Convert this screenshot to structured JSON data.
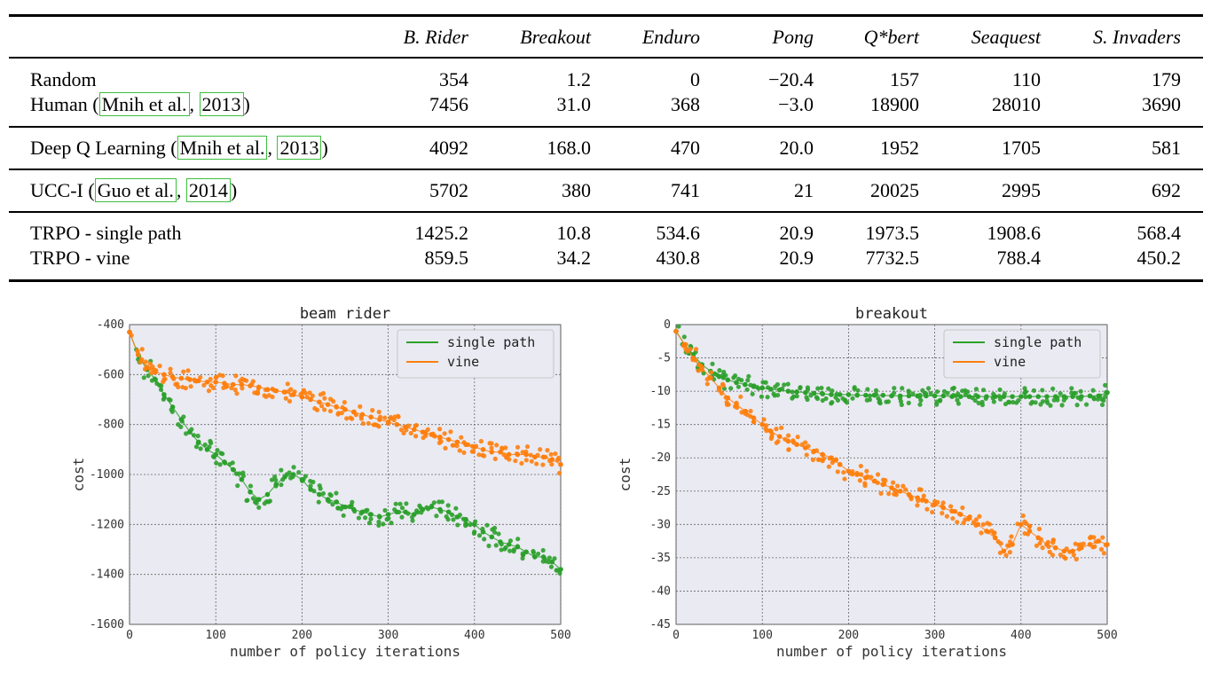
{
  "table": {
    "headers": [
      "",
      "B. Rider",
      "Breakout",
      "Enduro",
      "Pong",
      "Q*bert",
      "Seaquest",
      "S. Invaders"
    ],
    "groups": [
      [
        {
          "label": "Random",
          "values": [
            "354",
            "1.2",
            "0",
            "−20.4",
            "157",
            "110",
            "179"
          ]
        },
        {
          "label": "Human",
          "cite_author": "Mnih et al.",
          "cite_year": "2013",
          "values": [
            "7456",
            "31.0",
            "368",
            "−3.0",
            "18900",
            "28010",
            "3690"
          ]
        }
      ],
      [
        {
          "label": "Deep Q Learning",
          "cite_author": "Mnih et al.",
          "cite_year": "2013",
          "values": [
            "4092",
            "168.0",
            "470",
            "20.0",
            "1952",
            "1705",
            "581"
          ]
        }
      ],
      [
        {
          "label": "UCC-I",
          "cite_author": "Guo et al.",
          "cite_year": "2014",
          "values": [
            "5702",
            "380",
            "741",
            "21",
            "20025",
            "2995",
            "692"
          ]
        }
      ],
      [
        {
          "label": "TRPO - single path",
          "values": [
            "1425.2",
            "10.8",
            "534.6",
            "20.9",
            "1973.5",
            "1908.6",
            "568.4"
          ]
        },
        {
          "label": "TRPO - vine",
          "values": [
            "859.5",
            "34.2",
            "430.8",
            "20.9",
            "7732.5",
            "788.4",
            "450.2"
          ]
        }
      ]
    ]
  },
  "chart_data": [
    {
      "type": "scatter",
      "title": "beam rider",
      "xlabel": "number of policy iterations",
      "ylabel": "cost",
      "xlim": [
        0,
        500
      ],
      "ylim": [
        -1600,
        -400
      ],
      "xticks": [
        0,
        100,
        200,
        300,
        400,
        500
      ],
      "yticks": [
        -400,
        -600,
        -800,
        -1000,
        -1200,
        -1400,
        -1600
      ],
      "grid": true,
      "legend_position": "top-right",
      "series": [
        {
          "name": "single path",
          "color": "#2ca02c",
          "x": [
            0,
            10,
            20,
            30,
            40,
            50,
            60,
            70,
            80,
            90,
            100,
            110,
            120,
            130,
            140,
            150,
            160,
            170,
            180,
            190,
            200,
            210,
            220,
            230,
            240,
            250,
            260,
            270,
            280,
            290,
            300,
            310,
            320,
            330,
            340,
            350,
            360,
            370,
            380,
            390,
            400,
            410,
            420,
            430,
            440,
            450,
            460,
            470,
            480,
            490,
            500
          ],
          "y": [
            -430,
            -520,
            -580,
            -620,
            -680,
            -730,
            -780,
            -830,
            -870,
            -900,
            -920,
            -950,
            -980,
            -1020,
            -1070,
            -1100,
            -1080,
            -1040,
            -1010,
            -1000,
            -1020,
            -1060,
            -1080,
            -1100,
            -1110,
            -1130,
            -1140,
            -1150,
            -1160,
            -1170,
            -1160,
            -1150,
            -1150,
            -1160,
            -1140,
            -1130,
            -1140,
            -1150,
            -1170,
            -1180,
            -1200,
            -1230,
            -1250,
            -1270,
            -1280,
            -1290,
            -1310,
            -1330,
            -1330,
            -1350,
            -1380
          ]
        },
        {
          "name": "vine",
          "color": "#ff7f0e",
          "x": [
            0,
            10,
            20,
            30,
            40,
            50,
            60,
            70,
            80,
            90,
            100,
            110,
            120,
            130,
            140,
            150,
            160,
            170,
            180,
            190,
            200,
            210,
            220,
            230,
            240,
            250,
            260,
            270,
            280,
            290,
            300,
            310,
            320,
            330,
            340,
            350,
            360,
            370,
            380,
            390,
            400,
            410,
            420,
            430,
            440,
            450,
            460,
            470,
            480,
            490,
            500
          ],
          "y": [
            -430,
            -520,
            -570,
            -590,
            -600,
            -610,
            -615,
            -620,
            -625,
            -630,
            -630,
            -635,
            -640,
            -640,
            -645,
            -650,
            -660,
            -665,
            -670,
            -680,
            -690,
            -700,
            -710,
            -720,
            -730,
            -740,
            -750,
            -760,
            -770,
            -780,
            -790,
            -800,
            -810,
            -820,
            -830,
            -840,
            -850,
            -860,
            -870,
            -880,
            -890,
            -900,
            -910,
            -910,
            -920,
            -920,
            -920,
            -930,
            -930,
            -940,
            -960
          ]
        }
      ]
    },
    {
      "type": "scatter",
      "title": "breakout",
      "xlabel": "number of policy iterations",
      "ylabel": "cost",
      "xlim": [
        0,
        500
      ],
      "ylim": [
        -45,
        0
      ],
      "xticks": [
        0,
        100,
        200,
        300,
        400,
        500
      ],
      "yticks": [
        0,
        -5,
        -10,
        -15,
        -20,
        -25,
        -30,
        -35,
        -40,
        -45
      ],
      "grid": true,
      "legend_position": "top-right",
      "series": [
        {
          "name": "single path",
          "color": "#2ca02c",
          "x": [
            0,
            10,
            20,
            30,
            40,
            50,
            60,
            70,
            80,
            90,
            100,
            110,
            120,
            130,
            140,
            150,
            160,
            170,
            180,
            190,
            200,
            210,
            220,
            230,
            240,
            250,
            260,
            270,
            280,
            290,
            300,
            310,
            320,
            330,
            340,
            350,
            360,
            370,
            380,
            390,
            400,
            410,
            420,
            430,
            440,
            450,
            460,
            470,
            480,
            490,
            500
          ],
          "y": [
            -1,
            -3,
            -4.5,
            -6,
            -7,
            -7.8,
            -8.3,
            -8.7,
            -9.0,
            -9.3,
            -9.5,
            -9.7,
            -9.8,
            -10.0,
            -10.1,
            -10.2,
            -10.3,
            -10.4,
            -10.5,
            -10.5,
            -10.5,
            -10.6,
            -10.6,
            -10.6,
            -10.6,
            -10.7,
            -10.7,
            -10.7,
            -10.7,
            -10.7,
            -10.7,
            -10.7,
            -10.8,
            -10.8,
            -10.8,
            -10.8,
            -10.8,
            -10.8,
            -10.8,
            -10.8,
            -10.8,
            -10.8,
            -10.8,
            -10.8,
            -10.8,
            -10.8,
            -10.8,
            -10.8,
            -10.7,
            -10.7,
            -10.2
          ]
        },
        {
          "name": "vine",
          "color": "#ff7f0e",
          "x": [
            0,
            10,
            20,
            30,
            40,
            50,
            60,
            70,
            80,
            90,
            100,
            110,
            120,
            130,
            140,
            150,
            160,
            170,
            180,
            190,
            200,
            210,
            220,
            230,
            240,
            250,
            260,
            270,
            280,
            290,
            300,
            310,
            320,
            330,
            340,
            350,
            360,
            370,
            380,
            390,
            400,
            410,
            420,
            430,
            440,
            450,
            460,
            470,
            480,
            490,
            500
          ],
          "y": [
            -1,
            -3,
            -5,
            -6.5,
            -8,
            -9.5,
            -11,
            -12,
            -13,
            -14,
            -15,
            -16,
            -16.8,
            -17.5,
            -18,
            -18.5,
            -19,
            -19.5,
            -20,
            -21,
            -22,
            -22.5,
            -23,
            -23.5,
            -24,
            -24.5,
            -25,
            -25.5,
            -26,
            -26.5,
            -27,
            -27.5,
            -28,
            -28.5,
            -29,
            -30,
            -31,
            -32,
            -34,
            -33,
            -30,
            -31,
            -32,
            -33,
            -33.5,
            -34,
            -34,
            -33.5,
            -33,
            -32.5,
            -33
          ]
        }
      ]
    }
  ]
}
